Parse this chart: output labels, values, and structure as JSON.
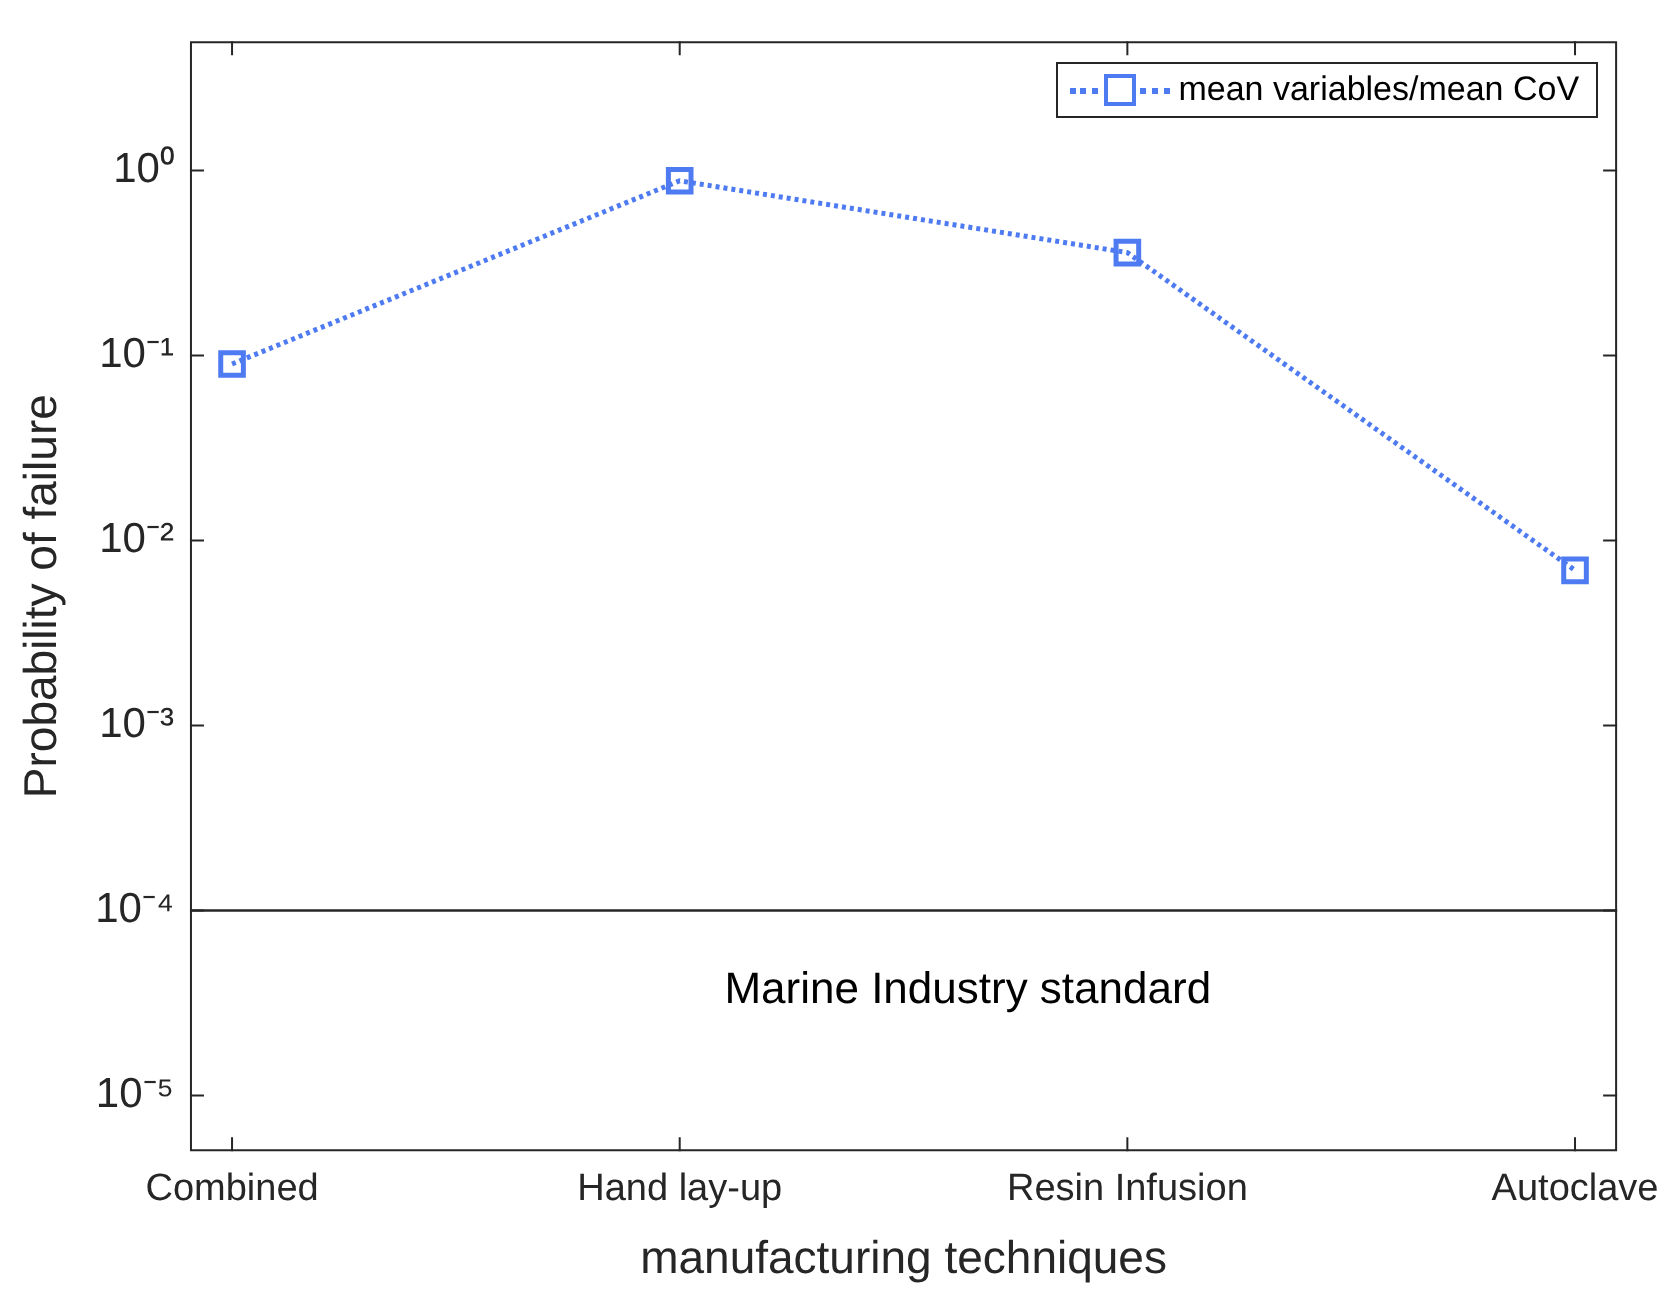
{
  "chart_data": {
    "type": "line",
    "xlabel": "manufacturing techniques",
    "ylabel": "Probability of failure",
    "categories": [
      "Combined",
      "Hand lay-up",
      "Resin Infusion",
      "Autoclave"
    ],
    "series": [
      {
        "name": "mean variables/mean CoV",
        "color": "#4f7bf2",
        "values": [
          0.09,
          0.88,
          0.36,
          0.0069
        ]
      }
    ],
    "log": true,
    "ylim": [
      5e-06,
      5
    ],
    "yticks": [
      {
        "value": 1e-05,
        "label": "10⁻⁵"
      },
      {
        "value": 0.0001,
        "label": "10⁻⁴"
      },
      {
        "value": 0.001,
        "label": "10⁻³"
      },
      {
        "value": 0.01,
        "label": "10⁻²"
      },
      {
        "value": 0.1,
        "label": "10⁻¹"
      },
      {
        "value": 1,
        "label": "10⁰"
      }
    ],
    "ref_lines": [
      {
        "axis": "y",
        "value": 0.0001,
        "label": "Marine Industry standard",
        "color": "#262626"
      }
    ],
    "grid": false,
    "legend": "top right",
    "marker": "square",
    "line_style": "dotted"
  }
}
